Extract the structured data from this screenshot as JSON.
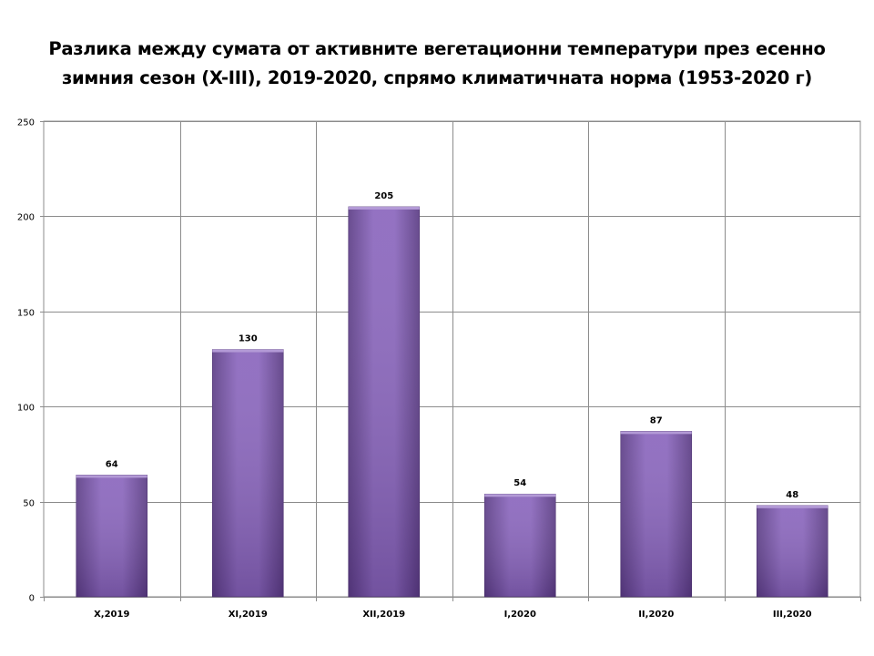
{
  "chart_data": {
    "type": "bar",
    "title_lines": [
      "Разлика между сумата от активните вегетационни температури през есенно",
      "зимния сезон (X-III), 2019-2020, спрямо климатичната норма (1953-2020 г)"
    ],
    "categories": [
      "X,2019",
      "XI,2019",
      "XII,2019",
      "I,2020",
      "II,2020",
      "III,2020"
    ],
    "values": [
      64,
      130,
      205,
      54,
      87,
      48
    ],
    "yticks": [
      0,
      50,
      100,
      150,
      200,
      250
    ],
    "ylim": [
      0,
      250
    ],
    "xlabel": "",
    "ylabel": "",
    "grid": true,
    "bar_color": "#7b56a8",
    "legend": "none"
  }
}
